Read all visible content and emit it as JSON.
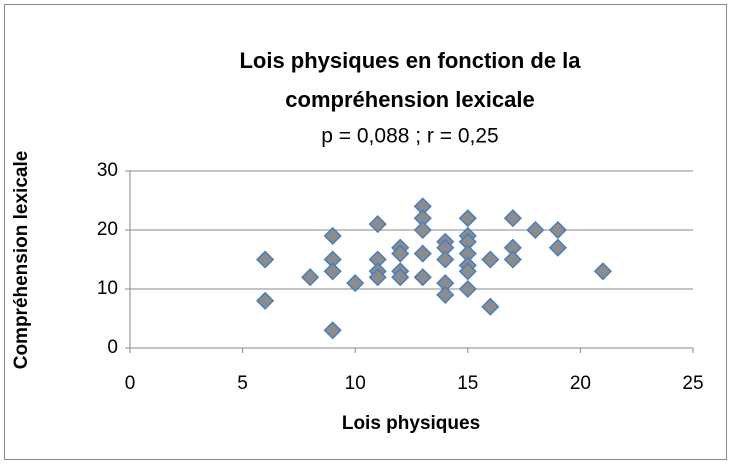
{
  "chart_data": {
    "type": "scatter",
    "title": "Lois physiques en fonction de la compréhension lexicale",
    "subtitle": "p = 0,088 ; r = 0,25",
    "x_label": "Lois physiques",
    "y_label": "Compréhension lexicale",
    "series": [
      {
        "name": "Compréhension lexicale",
        "color": "#8c8c8c",
        "edge_color": "#4a7ebb",
        "x": [
          6,
          6,
          8,
          9,
          9,
          9,
          9,
          10,
          11,
          11,
          11,
          11,
          12,
          12,
          12,
          12,
          13,
          13,
          13,
          13,
          13,
          14,
          14,
          14,
          14,
          14,
          15,
          15,
          15,
          15,
          15,
          15,
          15,
          16,
          16,
          17,
          17,
          17,
          18,
          19,
          19,
          21
        ],
        "values": [
          15,
          8,
          12,
          19,
          15,
          13,
          3,
          11,
          21,
          15,
          13,
          12,
          17,
          16,
          13,
          12,
          24,
          22,
          20,
          16,
          12,
          18,
          17,
          15,
          11,
          9,
          22,
          19,
          18,
          16,
          14,
          13,
          10,
          15,
          7,
          22,
          17,
          15,
          20,
          20,
          17,
          13
        ]
      }
    ],
    "xlim": [
      0,
      25
    ],
    "xticks": [
      0,
      5,
      10,
      15,
      20,
      25
    ],
    "ylim": [
      0,
      30
    ],
    "yticks": [
      0,
      10,
      20,
      30
    ],
    "grid": true
  }
}
